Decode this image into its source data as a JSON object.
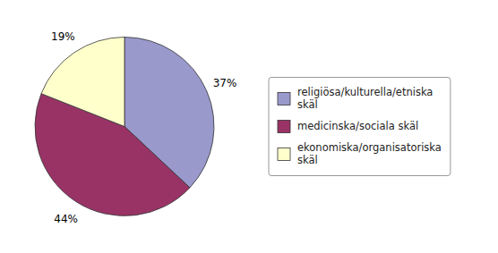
{
  "chart_data": {
    "type": "pie",
    "categories": [
      "religiösa/kulturella/etniska\nskäl",
      "medicinska/sociala skäl",
      "ekonomiska/organisatoriska\nskäl"
    ],
    "values": [
      37,
      44,
      19
    ],
    "value_labels": [
      "37%",
      "44%",
      "19%"
    ],
    "colors": [
      "#9999cc",
      "#993366",
      "#ffffcc"
    ],
    "data_labels": true,
    "legend": "right"
  }
}
